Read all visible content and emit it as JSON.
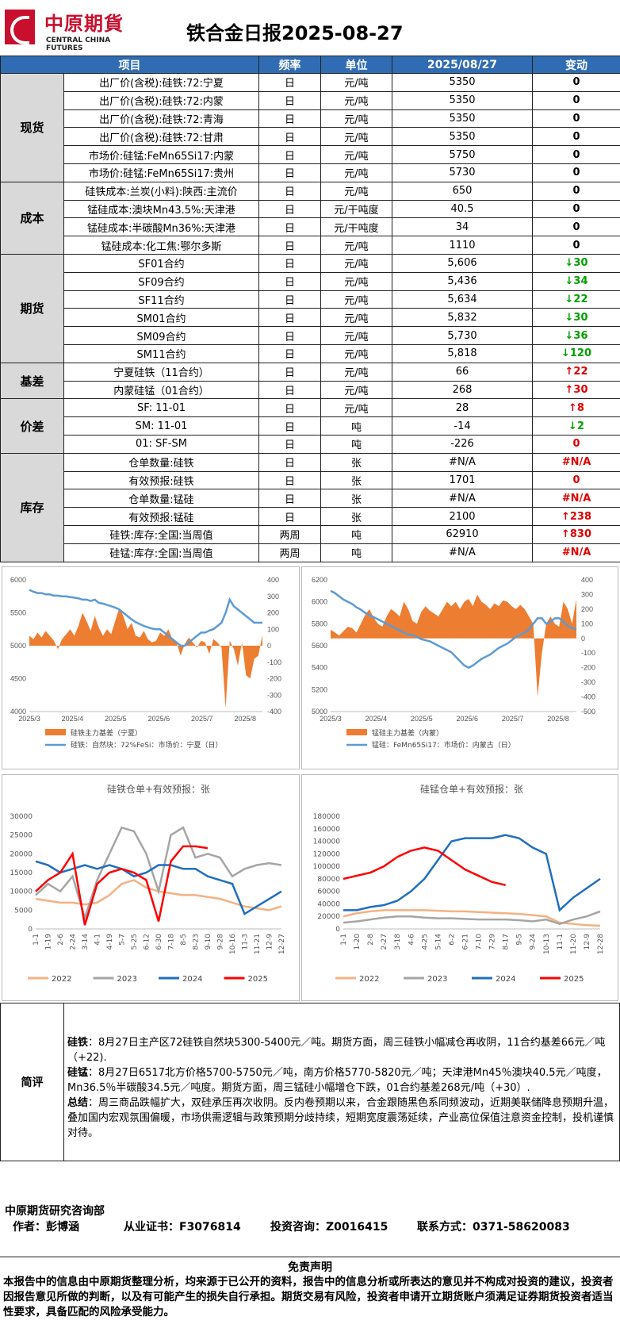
{
  "header": {
    "logo_cn": "中原期貨",
    "logo_en": "CENTRAL CHINA FUTURES",
    "title": "铁合金日报2025-08-27"
  },
  "table": {
    "columns": [
      "项目",
      "频率",
      "单位",
      "2025/08/27",
      "变动"
    ],
    "groups": [
      {
        "category": "现货",
        "rows": [
          {
            "item": "出厂价(含税):硅铁:72:宁夏",
            "freq": "日",
            "unit": "元/吨",
            "value": "5350",
            "change": "0",
            "dir": "zero"
          },
          {
            "item": "出厂价(含税):硅铁:72:内蒙",
            "freq": "日",
            "unit": "元/吨",
            "value": "5350",
            "change": "0",
            "dir": "zero"
          },
          {
            "item": "出厂价(含税):硅铁:72:青海",
            "freq": "日",
            "unit": "元/吨",
            "value": "5350",
            "change": "0",
            "dir": "zero"
          },
          {
            "item": "出厂价(含税):硅铁:72:甘肃",
            "freq": "日",
            "unit": "元/吨",
            "value": "5350",
            "change": "0",
            "dir": "zero"
          },
          {
            "item": "市场价:硅锰:FeMn65Si17:内蒙",
            "freq": "日",
            "unit": "元/吨",
            "value": "5750",
            "change": "0",
            "dir": "zero"
          },
          {
            "item": "市场价:硅锰:FeMn65Si17:贵州",
            "freq": "日",
            "unit": "元/吨",
            "value": "5730",
            "change": "0",
            "dir": "zero"
          }
        ]
      },
      {
        "category": "成本",
        "rows": [
          {
            "item": "硅铁成本:兰炭(小料):陕西:主流价",
            "freq": "日",
            "unit": "元/吨",
            "value": "650",
            "change": "0",
            "dir": "zero"
          },
          {
            "item": "锰硅成本:澳块Mn43.5%:天津港",
            "freq": "日",
            "unit": "元/干吨度",
            "value": "40.5",
            "change": "0",
            "dir": "zero"
          },
          {
            "item": "锰硅成本:半碳酸Mn36%:天津港",
            "freq": "日",
            "unit": "元/干吨度",
            "value": "34",
            "change": "0",
            "dir": "zero"
          },
          {
            "item": "锰硅成本:化工焦:鄂尔多斯",
            "freq": "日",
            "unit": "元/吨",
            "value": "1110",
            "change": "0",
            "dir": "zero"
          }
        ]
      },
      {
        "category": "期货",
        "rows": [
          {
            "item": "SF01合约",
            "freq": "日",
            "unit": "元/吨",
            "value": "5,606",
            "change": "↓30",
            "dir": "down"
          },
          {
            "item": "SF09合约",
            "freq": "日",
            "unit": "元/吨",
            "value": "5,436",
            "change": "↓34",
            "dir": "down"
          },
          {
            "item": "SF11合约",
            "freq": "日",
            "unit": "元/吨",
            "value": "5,634",
            "change": "↓22",
            "dir": "down"
          },
          {
            "item": "SM01合约",
            "freq": "日",
            "unit": "元/吨",
            "value": "5,832",
            "change": "↓30",
            "dir": "down"
          },
          {
            "item": "SM09合约",
            "freq": "日",
            "unit": "元/吨",
            "value": "5,730",
            "change": "↓36",
            "dir": "down"
          },
          {
            "item": "SM11合约",
            "freq": "日",
            "unit": "元/吨",
            "value": "5,818",
            "change": "↓120",
            "dir": "down"
          }
        ]
      },
      {
        "category": "基差",
        "rows": [
          {
            "item": "宁夏硅铁（11合约）",
            "freq": "日",
            "unit": "元/吨",
            "value": "66",
            "change": "↑22",
            "dir": "up"
          },
          {
            "item": "内蒙硅锰（01合约）",
            "freq": "日",
            "unit": "元/吨",
            "value": "268",
            "change": "↑30",
            "dir": "up"
          }
        ]
      },
      {
        "category": "价差",
        "rows": [
          {
            "item": "SF: 11-01",
            "freq": "日",
            "unit": "元/吨",
            "value": "28",
            "change": "↑8",
            "dir": "up"
          },
          {
            "item": "SM: 11-01",
            "freq": "日",
            "unit": "吨",
            "value": "-14",
            "change": "↓2",
            "dir": "down"
          },
          {
            "item": "01: SF-SM",
            "freq": "日",
            "unit": "吨",
            "value": "-226",
            "change": "0",
            "dir": "redzero"
          }
        ]
      },
      {
        "category": "库存",
        "rows": [
          {
            "item": "仓单数量:硅铁",
            "freq": "日",
            "unit": "张",
            "value": "#N/A",
            "change": "#N/A",
            "dir": "redzero"
          },
          {
            "item": "有效预报:硅铁",
            "freq": "日",
            "unit": "张",
            "value": "1701",
            "change": "0",
            "dir": "redzero"
          },
          {
            "item": "仓单数量:锰硅",
            "freq": "日",
            "unit": "张",
            "value": "#N/A",
            "change": "#N/A",
            "dir": "redzero"
          },
          {
            "item": "有效预报:锰硅",
            "freq": "日",
            "unit": "张",
            "value": "2100",
            "change": "↑238",
            "dir": "up"
          },
          {
            "item": "硅铁:库存:全国:当周值",
            "freq": "两周",
            "unit": "吨",
            "value": "62910",
            "change": "↑830",
            "dir": "up"
          },
          {
            "item": "硅锰:库存:全国:当周值",
            "freq": "两周",
            "unit": "吨",
            "value": "#N/A",
            "change": "#N/A",
            "dir": "redzero"
          }
        ]
      }
    ]
  },
  "chart_data": [
    {
      "type": "area",
      "title": "",
      "x_ticks": [
        "2025/3",
        "2025/4",
        "2025/5",
        "2025/6",
        "2025/7",
        "2025/8"
      ],
      "y_left_ticks": [
        "6000",
        "5500",
        "5000",
        "4500",
        "4000"
      ],
      "y_right_ticks": [
        "400",
        "300",
        "200",
        "100",
        "0",
        "-100",
        "-200",
        "-300",
        "-400"
      ],
      "ylim_left": [
        4000,
        6000
      ],
      "ylim_right": [
        -400,
        400
      ],
      "series": [
        {
          "name": "硅铁主力基差（宁夏）",
          "axis": "right",
          "kind": "area",
          "color": "#ed7d31",
          "values": [
            60,
            40,
            80,
            50,
            90,
            60,
            30,
            -20,
            40,
            70,
            100,
            60,
            120,
            200,
            150,
            90,
            180,
            110,
            60,
            100,
            70,
            150,
            230,
            180,
            100,
            140,
            60,
            50,
            90,
            40,
            20,
            30,
            80,
            60,
            100,
            40,
            20,
            -60,
            10,
            50,
            20,
            -10,
            30,
            20,
            -50,
            40,
            20,
            -10,
            -380,
            30,
            -20,
            -120,
            20,
            -180,
            -200,
            -80,
            -60,
            66
          ]
        },
        {
          "name": "硅铁：自然块：72%FeSi：市场价：宁夏（日）",
          "axis": "left",
          "kind": "line",
          "color": "#5b9bd5",
          "values": [
            5850,
            5820,
            5800,
            5800,
            5780,
            5780,
            5760,
            5760,
            5750,
            5750,
            5740,
            5730,
            5720,
            5700,
            5700,
            5680,
            5700,
            5650,
            5640,
            5620,
            5600,
            5580,
            5550,
            5500,
            5450,
            5400,
            5360,
            5330,
            5300,
            5280,
            5260,
            5250,
            5250,
            5200,
            5150,
            5100,
            5050,
            5000,
            5000,
            5050,
            5100,
            5150,
            5200,
            5200,
            5230,
            5250,
            5300,
            5350,
            5500,
            5700,
            5600,
            5550,
            5500,
            5450,
            5400,
            5350,
            5350,
            5350
          ]
        }
      ],
      "legend": [
        "硅铁主力基差（宁夏）",
        "硅铁：自然块：72%FeSi：市场价：宁夏（日）"
      ]
    },
    {
      "type": "area",
      "title": "",
      "x_ticks": [
        "2025/3",
        "2025/4",
        "2025/5",
        "2025/6",
        "2025/7",
        "2025/8"
      ],
      "y_left_ticks": [
        "6200",
        "6000",
        "5800",
        "5600",
        "5400",
        "5200",
        "5000"
      ],
      "y_right_ticks": [
        "400",
        "300",
        "200",
        "100",
        "0",
        "-100",
        "-200",
        "-300",
        "-400",
        "-500"
      ],
      "ylim_left": [
        5000,
        6200
      ],
      "ylim_right": [
        -500,
        400
      ],
      "series": [
        {
          "name": "锰硅主力基差（内蒙）",
          "axis": "right",
          "kind": "area",
          "color": "#ed7d31",
          "values": [
            60,
            40,
            20,
            50,
            80,
            70,
            40,
            100,
            160,
            200,
            140,
            100,
            80,
            150,
            200,
            180,
            150,
            250,
            200,
            120,
            100,
            180,
            220,
            190,
            170,
            150,
            200,
            250,
            220,
            250,
            200,
            250,
            270,
            220,
            300,
            250,
            230,
            200,
            240,
            220,
            260,
            250,
            220,
            200,
            230,
            200,
            150,
            100,
            -400,
            -100,
            100,
            150,
            100,
            80,
            250,
            200,
            100,
            268
          ]
        },
        {
          "name": "锰硅：FeMn65Si17：市场价：内蒙古（日）",
          "axis": "left",
          "kind": "line",
          "color": "#5b9bd5",
          "values": [
            6100,
            6080,
            6050,
            6020,
            6000,
            5980,
            5950,
            5930,
            5900,
            5880,
            5860,
            5840,
            5820,
            5800,
            5780,
            5760,
            5740,
            5720,
            5700,
            5700,
            5680,
            5660,
            5650,
            5640,
            5620,
            5600,
            5580,
            5560,
            5540,
            5500,
            5460,
            5420,
            5400,
            5420,
            5450,
            5480,
            5500,
            5520,
            5550,
            5580,
            5600,
            5620,
            5650,
            5680,
            5700,
            5720,
            5750,
            5800,
            5850,
            5850,
            5800,
            5820,
            5850,
            5850,
            5820,
            5780,
            5760,
            5750
          ]
        }
      ],
      "legend": [
        "锰硅主力基差（内蒙）",
        "锰硅：FeMn65Si17：市场价：内蒙古（日）"
      ]
    },
    {
      "type": "line",
      "title": "硅铁仓单+有效预报：张",
      "x_ticks": [
        "1-1",
        "1-19",
        "2-6",
        "2-24",
        "3-14",
        "4-1",
        "4-19",
        "5-7",
        "5-25",
        "6-12",
        "6-30",
        "7-18",
        "8-5",
        "8-23",
        "9-10",
        "9-28",
        "10-16",
        "11-3",
        "11-21",
        "12-9",
        "12-27"
      ],
      "y_ticks": [
        "30000",
        "25000",
        "20000",
        "15000",
        "10000",
        "5000",
        "0"
      ],
      "ylim": [
        0,
        30000
      ],
      "series": [
        {
          "name": "2022",
          "color": "#f4b183",
          "values": [
            8000,
            7500,
            7000,
            7000,
            6500,
            7000,
            9000,
            12000,
            13000,
            11000,
            10000,
            9500,
            9000,
            9000,
            8500,
            8000,
            7000,
            6000,
            5500,
            5000,
            6000
          ]
        },
        {
          "name": "2023",
          "color": "#a5a5a5",
          "values": [
            9000,
            12000,
            10000,
            14000,
            3000,
            13000,
            20000,
            27000,
            26000,
            20000,
            10000,
            25000,
            27000,
            19000,
            20000,
            19000,
            14000,
            16000,
            17000,
            17500,
            17000
          ]
        },
        {
          "name": "2024",
          "color": "#1f6fbf",
          "values": [
            18000,
            17000,
            15000,
            16000,
            17000,
            16000,
            17000,
            16000,
            14000,
            15000,
            17000,
            17000,
            16000,
            16000,
            14000,
            13000,
            12000,
            4000,
            6000,
            8000,
            10000
          ]
        },
        {
          "name": "2025",
          "color": "#ff0000",
          "values": [
            10000,
            13000,
            15000,
            20000,
            1000,
            12000,
            15000,
            16000,
            15000,
            13000,
            2000,
            18000,
            22000,
            22000,
            21500,
            null,
            null,
            null,
            null,
            null,
            null
          ]
        }
      ]
    },
    {
      "type": "line",
      "title": "硅锰仓单+有效预报：张",
      "x_ticks": [
        "1-1",
        "1-20",
        "2-8",
        "2-27",
        "3-18",
        "4-6",
        "4-25",
        "5-14",
        "6-2",
        "6-21",
        "7-10",
        "7-29",
        "8-17",
        "9-5",
        "9-24",
        "10-13",
        "11-1",
        "11-20",
        "12-9",
        "12-28"
      ],
      "y_ticks": [
        "180000",
        "160000",
        "140000",
        "120000",
        "100000",
        "80000",
        "60000",
        "40000",
        "20000",
        "0"
      ],
      "ylim": [
        0,
        180000
      ],
      "series": [
        {
          "name": "2022",
          "color": "#f4b183",
          "values": [
            20000,
            25000,
            28000,
            30000,
            30000,
            30000,
            30000,
            29000,
            28000,
            28000,
            27000,
            26000,
            25000,
            24000,
            22000,
            20000,
            10000,
            8000,
            6000,
            5000
          ]
        },
        {
          "name": "2023",
          "color": "#a5a5a5",
          "values": [
            10000,
            12000,
            15000,
            18000,
            20000,
            20000,
            18000,
            17000,
            17000,
            16000,
            15000,
            15000,
            15000,
            14000,
            12000,
            15000,
            8000,
            15000,
            20000,
            28000
          ]
        },
        {
          "name": "2024",
          "color": "#1f6fbf",
          "values": [
            30000,
            30000,
            35000,
            38000,
            45000,
            60000,
            80000,
            110000,
            140000,
            145000,
            145000,
            145000,
            150000,
            145000,
            130000,
            120000,
            30000,
            50000,
            65000,
            80000
          ]
        },
        {
          "name": "2025",
          "color": "#ff0000",
          "values": [
            80000,
            85000,
            90000,
            100000,
            115000,
            125000,
            130000,
            125000,
            110000,
            95000,
            85000,
            75000,
            70000,
            null,
            null,
            null,
            null,
            null,
            null,
            null
          ]
        }
      ]
    }
  ],
  "comment": {
    "label": "简评",
    "paragraphs": [
      {
        "head": "硅铁",
        "text": "：8月27日主产区72硅铁自然块5300-5400元／吨。期货方面，周三硅铁小幅减仓再收阴，11合约基差66元／吨（+22)."
      },
      {
        "head": "硅锰",
        "text": "：8月27日6517北方价格5700-5750元／吨，南方价格5770-5820元／吨；天津港Mn45％澳块40.5元／吨度，Mn36.5％半碳酸34.5元／吨度。期货方面，周三锰硅小幅增仓下跌，01合约基差268元/吨（+30）."
      },
      {
        "head": "总结",
        "text": "：周三商品跌幅扩大，双硅承压再次收阴。反内卷预期以来，合金跟随黑色系同频波动，近期美联储降息预期升温，叠加国内宏观氛围偏暖，市场供需逻辑与政策预期分歧持续，短期宽度震荡延续，产业高位保值注意资金控制，投机谨慎对待。"
      }
    ]
  },
  "research": {
    "dept": "中原期货研究咨询部",
    "author": "作者：彭博涵",
    "cert": "从业证书：F3076814",
    "consult": "投资咨询：Z0016415",
    "contact": "联系方式：0371-58620083"
  },
  "disclaimer": {
    "title": "免责声明",
    "text": "本报告中的信息由中原期货整理分析，均来源于已公开的资料，报告中的信息分析或所表达的意见并不构成对投资的建议，投资者因报告意见所做的判断，以及有可能产生的损失自行承担。期货交易有风险，投资者申请开立期货账户须满足证券期货投资者适当性要求，具备匹配的风险承受能力。"
  }
}
